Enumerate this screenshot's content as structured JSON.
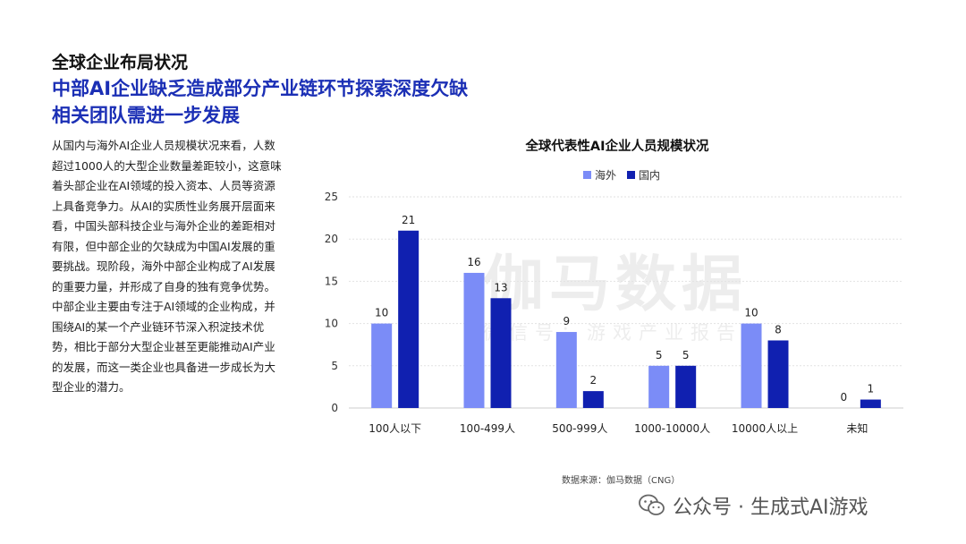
{
  "header": {
    "section_title": "全球企业布局状况",
    "headline_line1": "中部AI企业缺乏造成部分产业链环节探索深度欠缺",
    "headline_line2": "相关团队需进一步发展"
  },
  "body_text": "从国内与海外AI企业人员规模状况来看，人数超过1000人的大型企业数量差距较小，这意味着头部企业在AI领域的投入资本、人员等资源上具备竞争力。从AI的实质性业务展开层面来看，中国头部科技企业与海外企业的差距相对有限，但中部企业的欠缺成为中国AI发展的重要挑战。现阶段，海外中部企业构成了AI发展的重要力量，并形成了自身的独有竞争优势。中部企业主要由专注于AI领域的企业构成，并围绕AI的某一个产业链环节深入积淀技术优势，相比于部分大型企业甚至更能推动AI产业的发展，而这一类企业也具备进一步成长为大型企业的潜力。",
  "watermark": {
    "main": "伽马数据",
    "sub": "微信号：游戏产业报告"
  },
  "source": "数据来源：伽马数据（CNG）",
  "footer": {
    "text": "公众号 · 生成式AI游戏",
    "icon": "wechat-icon"
  },
  "chart_data": {
    "type": "bar",
    "title": "全球代表性AI企业人员规模状况",
    "categories": [
      "100人以下",
      "100-499人",
      "500-999人",
      "1000-10000人",
      "10000人以上",
      "未知"
    ],
    "series": [
      {
        "name": "海外",
        "color": "#7b8cf7",
        "values": [
          10,
          16,
          9,
          5,
          10,
          0
        ]
      },
      {
        "name": "国内",
        "color": "#1020b0",
        "values": [
          21,
          13,
          2,
          5,
          8,
          1
        ]
      }
    ],
    "y_ticks": [
      0,
      5,
      10,
      15,
      20,
      25
    ],
    "ylim": [
      0,
      25
    ],
    "grid": true,
    "legend_position": "top",
    "data_labels": true
  }
}
